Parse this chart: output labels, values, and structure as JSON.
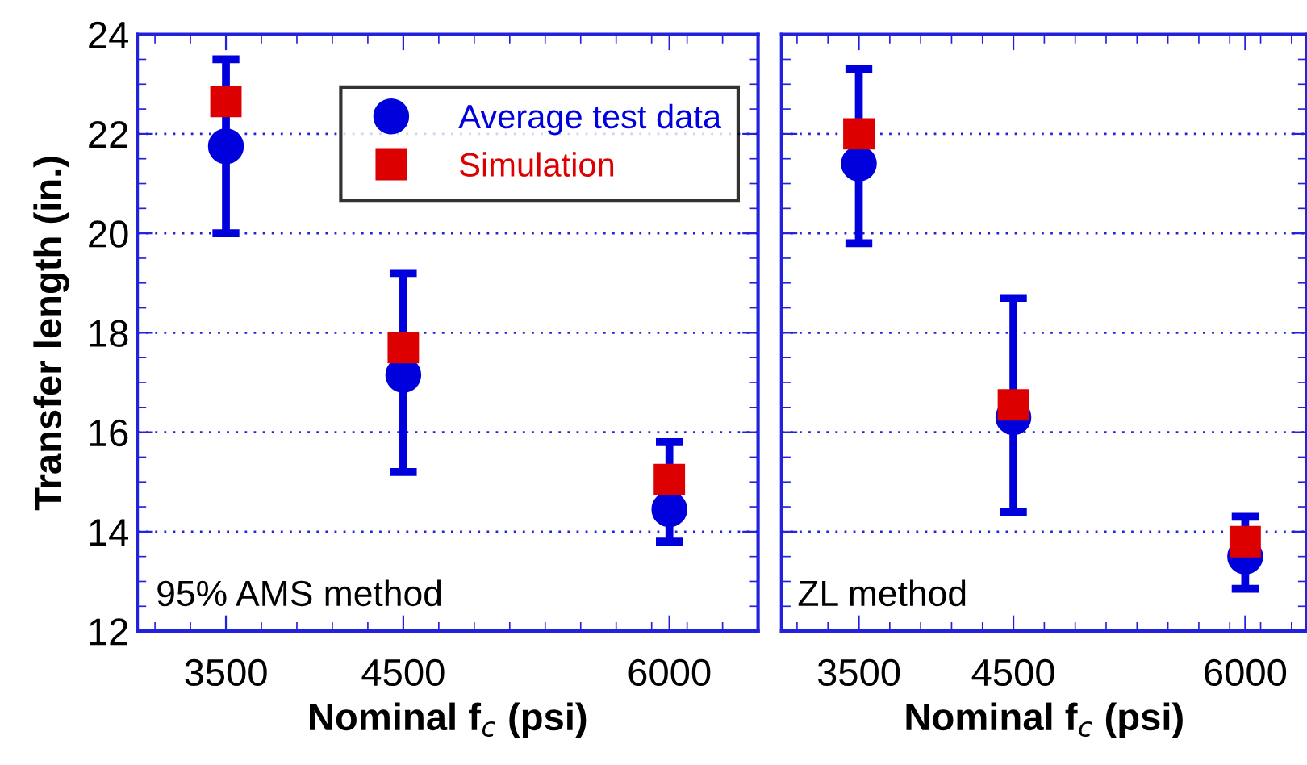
{
  "chart_data": [
    {
      "type": "scatter",
      "xlabel": "Nominal f$_{c}$ (psi)",
      "ylabel": "Transfer length (in.)",
      "annotations": [
        "95% AMS method"
      ],
      "x": [
        3500,
        4500,
        6000
      ],
      "xlim": [
        3000,
        6500
      ],
      "xticks": [
        3500,
        4500,
        6000
      ],
      "ylim": [
        12,
        24
      ],
      "yticks": [
        12,
        14,
        16,
        18,
        20,
        22,
        24
      ],
      "grid": "y",
      "legend": "top right",
      "series": [
        {
          "name": "Average test data",
          "color": "#0000dd",
          "marker": "circle",
          "values": [
            21.75,
            17.15,
            14.45
          ],
          "errors": [
            [
              20.0,
              23.5
            ],
            [
              15.2,
              19.2
            ],
            [
              13.8,
              15.8
            ]
          ]
        },
        {
          "name": "Simulation",
          "color": "#dd0000",
          "marker": "square",
          "values": [
            22.65,
            17.7,
            15.05
          ]
        }
      ]
    },
    {
      "type": "scatter",
      "xlabel": "Nominal f$_{c}$ (psi)",
      "annotations": [
        "ZL method"
      ],
      "x": [
        3500,
        4500,
        6000
      ],
      "xlim": [
        3000,
        6400
      ],
      "xticks": [
        3500,
        4500,
        6000
      ],
      "ylim": [
        12,
        24
      ],
      "yticks": [
        12,
        14,
        16,
        18,
        20,
        22,
        24
      ],
      "grid": "y",
      "tick_labels": "x",
      "series": [
        {
          "color": "#0000dd",
          "marker": "circle",
          "values": [
            21.4,
            16.3,
            13.5
          ],
          "errors": [
            [
              19.8,
              23.3
            ],
            [
              14.4,
              18.7
            ],
            [
              12.85,
              14.3
            ]
          ]
        },
        {
          "color": "#dd0000",
          "marker": "square",
          "values": [
            22.0,
            16.55,
            13.8
          ]
        }
      ]
    }
  ]
}
